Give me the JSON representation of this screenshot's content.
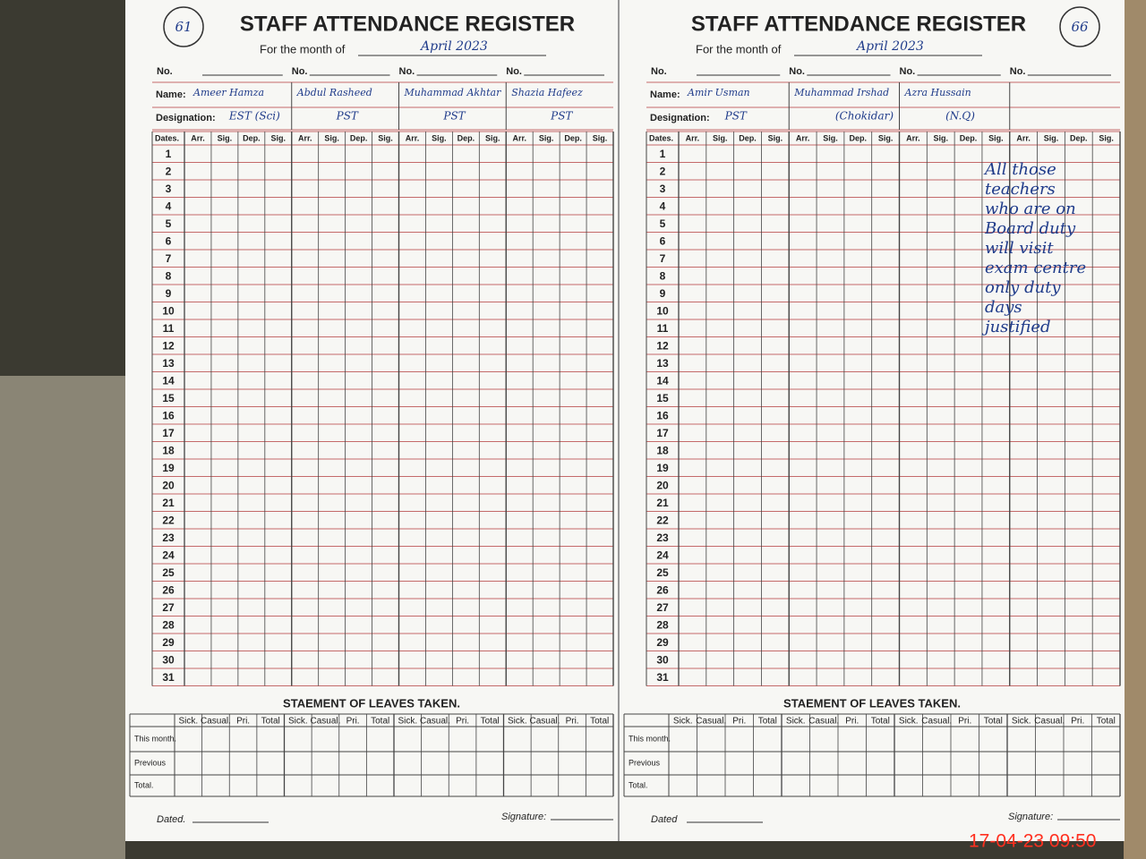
{
  "left_page": {
    "page_number": "61",
    "title": "STAFF ATTENDANCE REGISTER",
    "month_label": "For the month of",
    "month": "April 2023",
    "no_label": "No.",
    "name_label": "Name:",
    "designation_label": "Designation:",
    "dates_label": "Dates.",
    "columns": [
      "Arr.",
      "Sig.",
      "Dep.",
      "Sig."
    ],
    "names": [
      "Ameer Hamza",
      "Abdul Rasheed",
      "Muhammad Akhtar",
      "Shazia Hafeez"
    ],
    "designations": [
      "EST (Sci)",
      "PST",
      "PST",
      "PST"
    ],
    "dates": [
      1,
      2,
      3,
      4,
      5,
      6,
      7,
      8,
      9,
      10,
      11,
      12,
      13,
      14,
      15,
      16,
      17,
      18,
      19,
      20,
      21,
      22,
      23,
      24,
      25,
      26,
      27,
      28,
      29,
      30,
      31
    ],
    "leaves_title": "STAEMENT OF LEAVES TAKEN.",
    "leave_columns": [
      "Sick.",
      "Casual.",
      "Pri.",
      "Total"
    ],
    "leave_rows": [
      "This month.",
      "Previous",
      "Total."
    ],
    "dated_label": "Dated.",
    "signature_label": "Signature:"
  },
  "right_page": {
    "page_number": "66",
    "title": "STAFF ATTENDANCE REGISTER",
    "month_label": "For the month of",
    "month": "April 2023",
    "no_label": "No.",
    "name_label": "Name:",
    "designation_label": "Designation:",
    "dates_label": "Dates.",
    "columns": [
      "Arr.",
      "Sig.",
      "Dep.",
      "Sig."
    ],
    "names": [
      "Amir Usman",
      "Muhammad Irshad",
      "Azra Hussain"
    ],
    "designations": [
      "PST",
      "(Chokidar)",
      "(N.Q)"
    ],
    "dates": [
      1,
      2,
      3,
      4,
      5,
      6,
      7,
      8,
      9,
      10,
      11,
      12,
      13,
      14,
      15,
      16,
      17,
      18,
      19,
      20,
      21,
      22,
      23,
      24,
      25,
      26,
      27,
      28,
      29,
      30,
      31
    ],
    "leaves_title": "STAEMENT OF LEAVES TAKEN.",
    "leave_columns": [
      "Sick.",
      "Casual.",
      "Pri.",
      "Total"
    ],
    "leave_rows": [
      "This month.",
      "Previous",
      "Total."
    ],
    "dated_label": "Dated",
    "signature_label": "Signature:"
  },
  "note": [
    "All those",
    "teachers",
    "who are on",
    "Board duty",
    "will visit",
    "exam centre",
    "only duty",
    "days",
    "justified"
  ],
  "timestamp": "17-04-23 09:50"
}
